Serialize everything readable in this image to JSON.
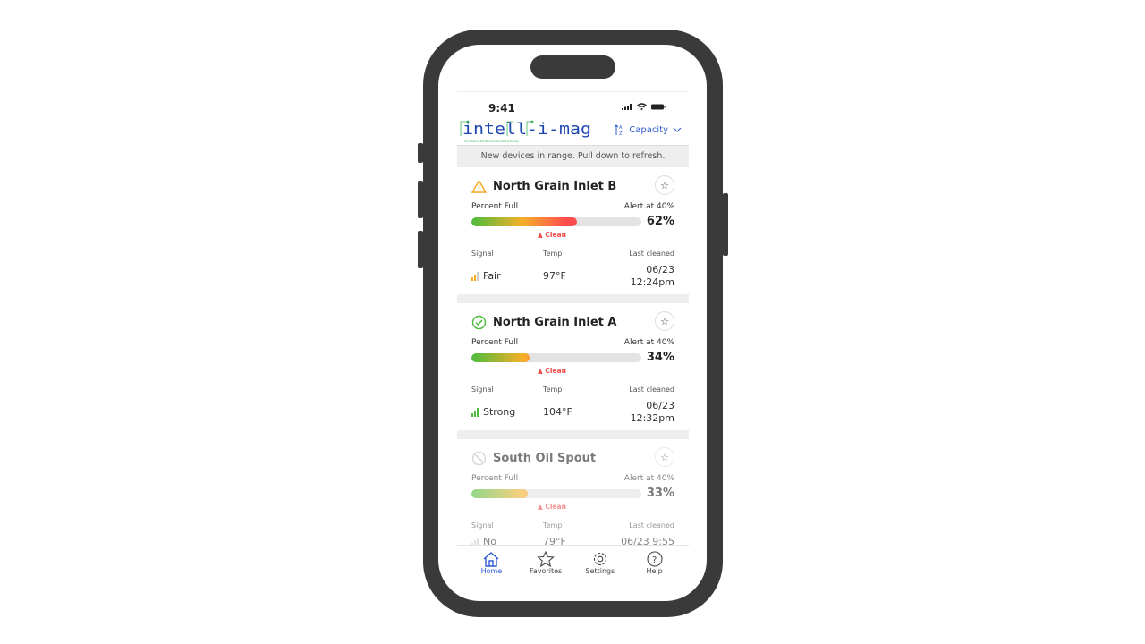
{
  "status_bar": {
    "time": "9:41"
  },
  "header": {
    "logo": "intell-i-mag",
    "sort_label": "Capacity"
  },
  "banner": "New devices in range. Pull down to refresh.",
  "labels": {
    "percent_full": "Percent Full",
    "signal": "Signal",
    "temp": "Temp",
    "last_cleaned": "Last cleaned",
    "clean": "Clean"
  },
  "devices": [
    {
      "name": "North Grain Inlet B",
      "status": "warning",
      "alert": "Alert at 40%",
      "percent": "62%",
      "fill": 62,
      "signal": "Fair",
      "temp": "97°F",
      "last_cleaned": "06/23 12:24pm"
    },
    {
      "name": "North Grain Inlet A",
      "status": "ok",
      "alert": "Alert at 40%",
      "percent": "34%",
      "fill": 34,
      "signal": "Strong",
      "temp": "104°F",
      "last_cleaned": "06/23 12:32pm"
    },
    {
      "name": "South Oil Spout",
      "status": "offline",
      "alert": "Alert at 40%",
      "percent": "33%",
      "fill": 33,
      "signal": "No",
      "temp": "79°F",
      "last_cleaned": "06/23 9:55"
    }
  ],
  "tabs": [
    {
      "label": "Home",
      "icon": "home-icon",
      "active": true
    },
    {
      "label": "Favorites",
      "icon": "star-icon"
    },
    {
      "label": "Settings",
      "icon": "gear-icon"
    },
    {
      "label": "Help",
      "icon": "help-icon"
    }
  ],
  "colors": {
    "accent": "#2f5bd0",
    "alert": "#f04848",
    "warning": "#f5a623",
    "ok": "#4cbb3c"
  }
}
